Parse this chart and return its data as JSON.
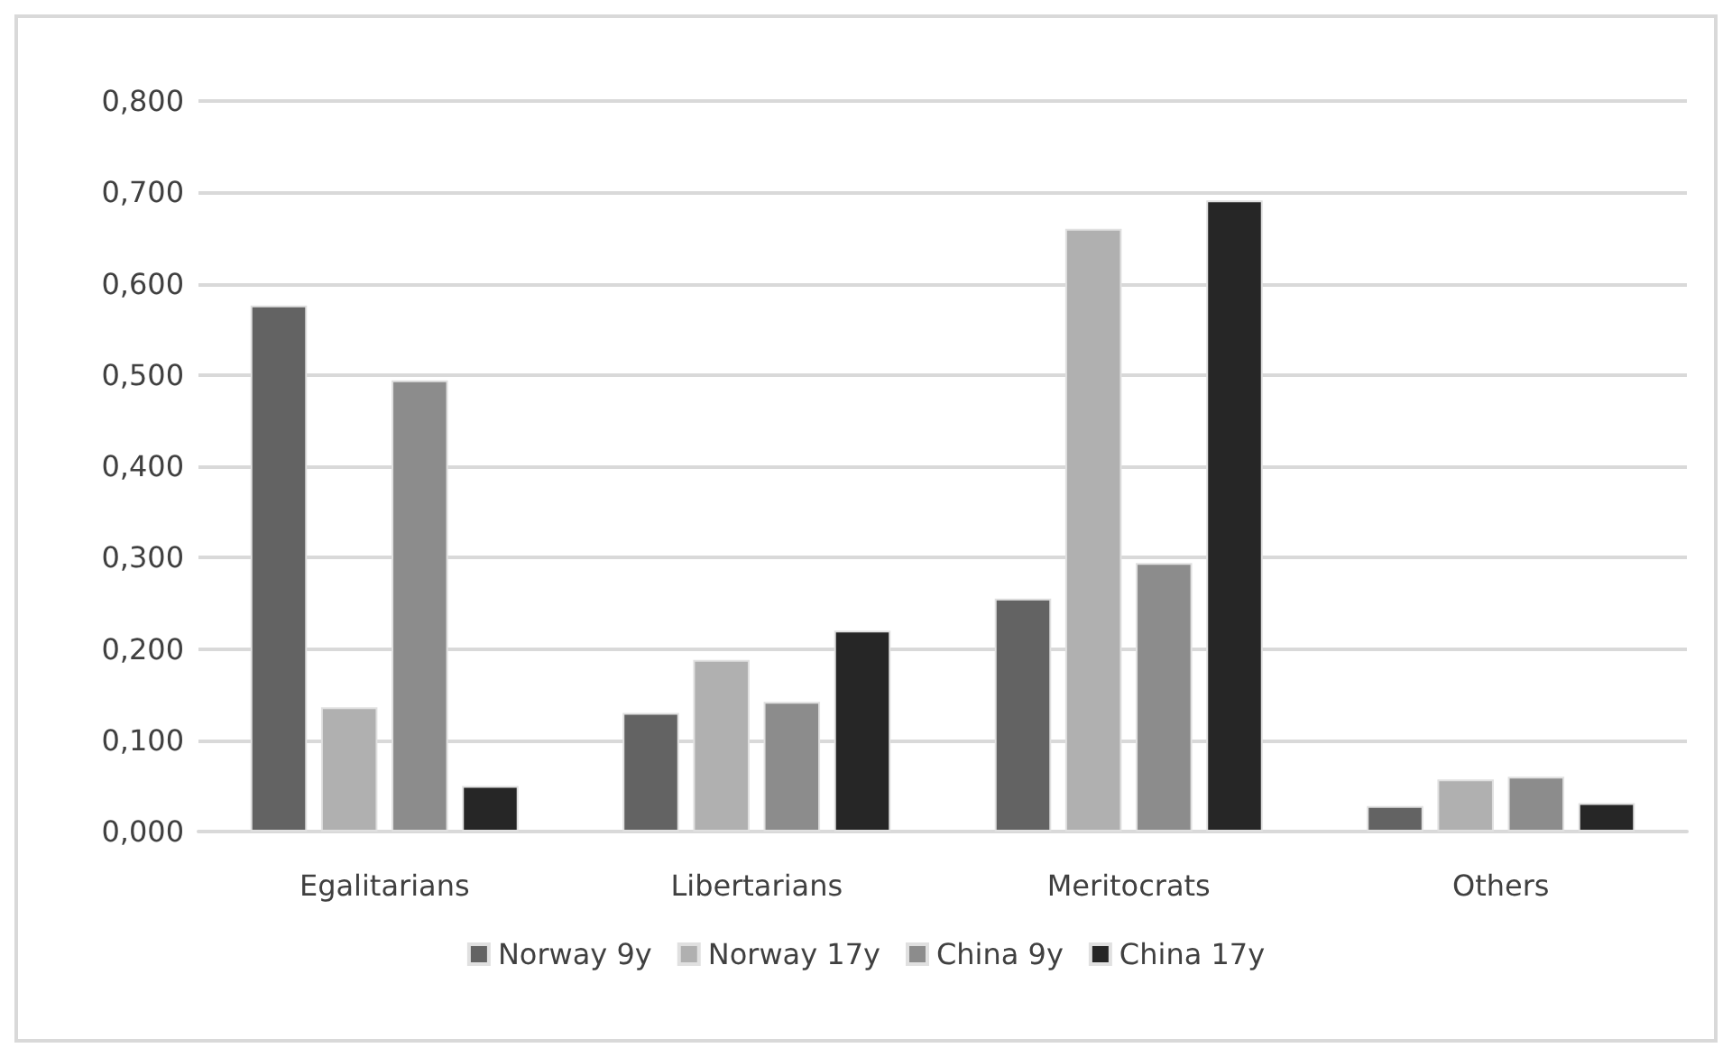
{
  "chart_data": {
    "type": "bar",
    "categories": [
      "Egalitarians",
      "Libertarians",
      "Meritocrats",
      "Others"
    ],
    "series": [
      {
        "name": "Norway 9y",
        "color": "#636363",
        "values": [
          0.576,
          0.13,
          0.255,
          0.028
        ]
      },
      {
        "name": "Norway 17y",
        "color": "#b0b0b0",
        "values": [
          0.136,
          0.188,
          0.66,
          0.057
        ]
      },
      {
        "name": "China 9y",
        "color": "#8c8c8c",
        "values": [
          0.494,
          0.142,
          0.294,
          0.06
        ]
      },
      {
        "name": "China 17y",
        "color": "#262626",
        "values": [
          0.05,
          0.22,
          0.691,
          0.031
        ]
      }
    ],
    "ylim": [
      0,
      0.8
    ],
    "yticks": [
      {
        "value": 0,
        "label": "0,000"
      },
      {
        "value": 0.1,
        "label": "0,100"
      },
      {
        "value": 0.2,
        "label": "0,200"
      },
      {
        "value": 0.3,
        "label": "0,300"
      },
      {
        "value": 0.4,
        "label": "0,400"
      },
      {
        "value": 0.5,
        "label": "0,500"
      },
      {
        "value": 0.6,
        "label": "0,600"
      },
      {
        "value": 0.7,
        "label": "0,700"
      },
      {
        "value": 0.8,
        "label": "0,800"
      }
    ],
    "grid": "y",
    "legend": "bottom"
  }
}
